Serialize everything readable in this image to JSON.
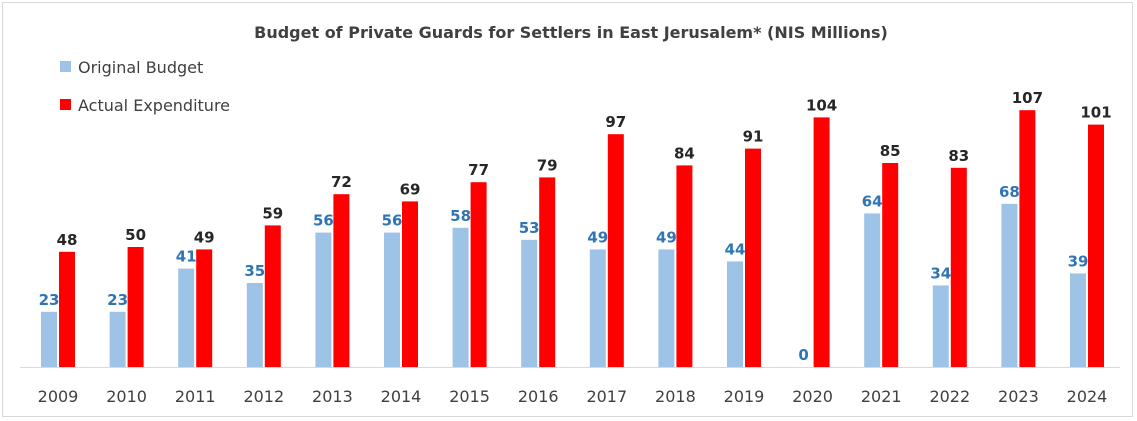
{
  "chart_data": {
    "type": "bar",
    "title": "Budget of Private Guards for Settlers in East Jerusalem* (NIS Millions)",
    "categories": [
      "2009",
      "2010",
      "2011",
      "2012",
      "2013",
      "2014",
      "2015",
      "2016",
      "2017",
      "2018",
      "2019",
      "2020",
      "2021",
      "2022",
      "2023",
      "2024"
    ],
    "series": [
      {
        "name": "Original Budget",
        "color": "#9dc3e6",
        "label_color": "#2e75b6",
        "values": [
          23,
          23,
          41,
          35,
          56,
          56,
          58,
          53,
          49,
          49,
          44,
          0,
          64,
          34,
          68,
          39
        ]
      },
      {
        "name": "Actual Expenditure",
        "color": "#ff0000",
        "label_color": "#262626",
        "values": [
          48,
          50,
          49,
          59,
          72,
          69,
          77,
          79,
          97,
          84,
          91,
          104,
          85,
          83,
          107,
          101
        ]
      }
    ],
    "xlabel": "",
    "ylabel": "",
    "ylim": [
      0,
      120
    ],
    "grid": false,
    "data_labels": true,
    "legend_position": "top-left"
  }
}
